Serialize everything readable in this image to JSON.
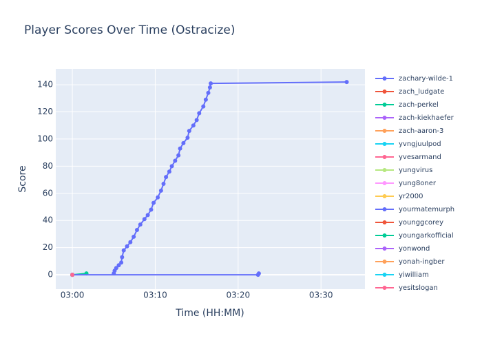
{
  "chart_data": {
    "type": "line",
    "title": "Player Scores Over Time (Ostracize)",
    "x_label": "Time (HH:MM)",
    "y_label": "Score",
    "xlim": [
      178,
      215.3
    ],
    "ylim": [
      -10.6,
      151.7
    ],
    "xticks": [
      {
        "value": 180,
        "label": "03:00"
      },
      {
        "value": 190,
        "label": "03:10"
      },
      {
        "value": 200,
        "label": "03:20"
      },
      {
        "value": 210,
        "label": "03:30"
      }
    ],
    "yticks": [
      0,
      20,
      40,
      60,
      80,
      100,
      120,
      140
    ],
    "grid": true,
    "legend": "right",
    "series": [
      {
        "name": "zachary-wilde-1",
        "color": "#636efa",
        "x": [
          185.0,
          185.1,
          185.3,
          185.6,
          185.9,
          186.0,
          186.2,
          186.6,
          187.0,
          187.4,
          187.8,
          188.2,
          188.7,
          189.1,
          189.5,
          189.8,
          190.3,
          190.7,
          191.0,
          191.3,
          191.7,
          192.0,
          192.4,
          192.8,
          193.0,
          193.4,
          193.9,
          194.1,
          194.6,
          195.0,
          195.3,
          195.8,
          196.1,
          196.4,
          196.6,
          196.7,
          213.1
        ],
        "values": [
          1,
          3,
          5,
          7,
          9,
          13,
          18,
          21,
          24,
          28,
          33,
          37,
          41,
          44,
          48,
          53,
          57,
          62,
          67,
          72,
          76,
          80,
          84,
          88,
          93,
          97,
          101,
          106,
          110,
          114,
          119,
          124,
          129,
          134,
          138,
          141,
          142
        ]
      },
      {
        "name": "zach_ludgate",
        "color": "#EF553B",
        "x": [
          180
        ],
        "values": [
          0
        ]
      },
      {
        "name": "zach-perkel",
        "color": "#00cc96",
        "x": [
          180,
          181.7
        ],
        "values": [
          0,
          1
        ]
      },
      {
        "name": "zach-kiekhaefer",
        "color": "#ab63fa",
        "x": [
          180
        ],
        "values": [
          0
        ]
      },
      {
        "name": "zach-aaron-3",
        "color": "#FFA15A",
        "x": [
          180
        ],
        "values": [
          0
        ]
      },
      {
        "name": "yvngjuulpod",
        "color": "#19d3f3",
        "x": [
          180
        ],
        "values": [
          0
        ]
      },
      {
        "name": "yvesarmand",
        "color": "#FF6692",
        "x": [
          180
        ],
        "values": [
          0
        ]
      },
      {
        "name": "yungvirus",
        "color": "#B6E880",
        "x": [
          180
        ],
        "values": [
          0
        ]
      },
      {
        "name": "yung8oner",
        "color": "#FF97FF",
        "x": [
          180
        ],
        "values": [
          0
        ]
      },
      {
        "name": "yr2000",
        "color": "#FECB52",
        "x": [
          180
        ],
        "values": [
          0
        ]
      },
      {
        "name": "yourmatemurph",
        "color": "#636efa",
        "x": [
          180,
          202.4,
          202.5
        ],
        "values": [
          0,
          0,
          1
        ]
      },
      {
        "name": "younggcorey",
        "color": "#EF553B",
        "x": [
          180
        ],
        "values": [
          0
        ]
      },
      {
        "name": "youngarkofficial",
        "color": "#00cc96",
        "x": [
          180
        ],
        "values": [
          0
        ]
      },
      {
        "name": "yonwond",
        "color": "#ab63fa",
        "x": [
          180
        ],
        "values": [
          0
        ]
      },
      {
        "name": "yonah-ingber",
        "color": "#FFA15A",
        "x": [
          180
        ],
        "values": [
          0
        ]
      },
      {
        "name": "yiwilliam",
        "color": "#19d3f3",
        "x": [
          180
        ],
        "values": [
          0
        ]
      },
      {
        "name": "yesitslogan",
        "color": "#FF6692",
        "x": [
          180
        ],
        "values": [
          0
        ]
      }
    ]
  }
}
